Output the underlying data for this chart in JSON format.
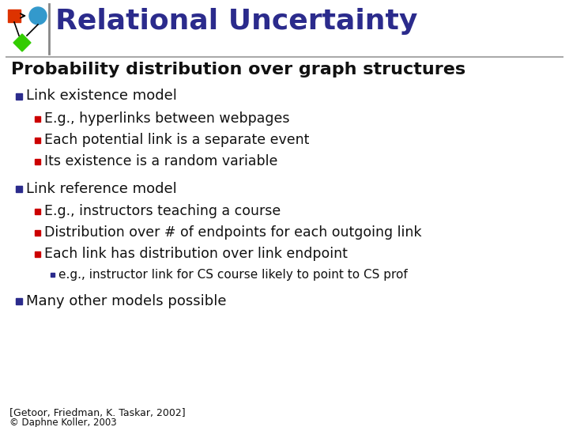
{
  "title": "Relational Uncertainty",
  "title_color": "#2b2b8c",
  "bg_color": "#ffffff",
  "heading": "Probability distribution over graph structures",
  "heading_fontsize": 16,
  "title_fontsize": 26,
  "bullet_color_blue": "#2b2b8c",
  "bullet_color_red": "#cc0000",
  "footer1": "[Getoor, Friedman, K. Taskar, 2002]",
  "footer2": "© Daphne Koller, 2003",
  "lines": [
    {
      "level": 1,
      "text": "Link existence model",
      "bullet": "blue_square"
    },
    {
      "level": 2,
      "text": "E.g., hyperlinks between webpages",
      "bullet": "red_square"
    },
    {
      "level": 2,
      "text": "Each potential link is a separate event",
      "bullet": "red_square"
    },
    {
      "level": 2,
      "text": "Its existence is a random variable",
      "bullet": "red_square"
    },
    {
      "level": 1,
      "text": "Link reference model",
      "bullet": "blue_square"
    },
    {
      "level": 2,
      "text": "E.g., instructors teaching a course",
      "bullet": "red_square"
    },
    {
      "level": 2,
      "text": "Distribution over # of endpoints for each outgoing link",
      "bullet": "red_square"
    },
    {
      "level": 2,
      "text": "Each link has distribution over link endpoint",
      "bullet": "red_square"
    },
    {
      "level": 3,
      "text": "e.g., instructor link for CS course likely to point to CS prof",
      "bullet": "blue_square"
    },
    {
      "level": 1,
      "text": "Many other models possible",
      "bullet": "blue_square"
    }
  ]
}
